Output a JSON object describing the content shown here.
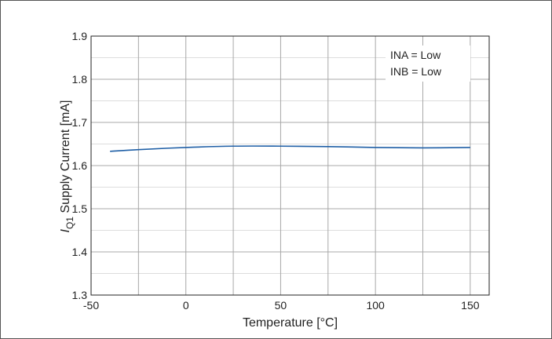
{
  "chart_data": {
    "type": "line",
    "xlabel": "Temperature [°C]",
    "ylabel_symbol": "I",
    "ylabel_subscript": "Q1",
    "ylabel_rest": " Supply Current [mA]",
    "xlim": [
      -50,
      160
    ],
    "ylim": [
      1.3,
      1.9
    ],
    "xticks": [
      -50,
      0,
      50,
      100,
      150
    ],
    "xtick_labels": [
      "-50",
      "0",
      "50",
      "100",
      "150"
    ],
    "x_minor_grid": [
      -25,
      25,
      75,
      125
    ],
    "yticks": [
      1.3,
      1.4,
      1.5,
      1.6,
      1.7,
      1.8,
      1.9
    ],
    "ytick_labels": [
      "1.3",
      "1.4",
      "1.5",
      "1.6",
      "1.7",
      "1.8",
      "1.9"
    ],
    "y_minor_grid": [
      1.35,
      1.45,
      1.55,
      1.65,
      1.75,
      1.85
    ],
    "grid": true,
    "legend_position": "top-right",
    "annotations": [
      "INA = Low",
      "INB = Low"
    ],
    "series": [
      {
        "color": "#1f5fa6",
        "x": [
          -40,
          -25,
          0,
          25,
          50,
          75,
          100,
          125,
          150
        ],
        "y": [
          1.633,
          1.637,
          1.642,
          1.645,
          1.645,
          1.644,
          1.642,
          1.641,
          1.642
        ]
      }
    ]
  }
}
